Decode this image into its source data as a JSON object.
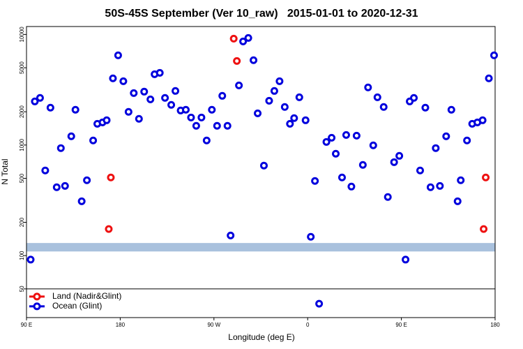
{
  "chart_data": {
    "type": "scatter",
    "title": "50S-45S September (Ver 10_raw)   2015-01-01 to 2020-12-31",
    "xlabel": "Longitude (deg E)",
    "ylabel": "N Total",
    "log_y": true,
    "xlim": [
      90,
      540
    ],
    "ylim": [
      27.5,
      11800
    ],
    "xticks": [
      {
        "value": 90,
        "label": "90 E"
      },
      180,
      {
        "value": 270,
        "label": "90 W"
      },
      {
        "value": 360,
        "label": "0"
      },
      {
        "value": 450,
        "label": "90 E"
      },
      {
        "value": 540,
        "label": "180"
      }
    ],
    "yticks": [
      50,
      100,
      200,
      500,
      1000,
      2000,
      5000,
      10000
    ],
    "band": [
      109,
      130
    ],
    "band_color": "#a9c1dd",
    "legend": "bottom-left",
    "series": [
      {
        "name": "Land (Nadir&Glint)",
        "color": "#ee1111",
        "x": [
          169,
          171,
          289,
          292,
          529,
          531
        ],
        "values": [
          174,
          509,
          9160,
          5760,
          174,
          509
        ]
      },
      {
        "name": "Ocean (Glint)",
        "color": "#0000dd",
        "x": [
          94,
          98,
          103,
          108,
          113,
          119,
          123,
          127,
          133,
          137,
          143,
          148,
          154,
          158,
          163,
          167,
          173,
          178,
          183,
          188,
          193,
          198,
          203,
          209,
          213,
          218,
          223,
          229,
          233,
          238,
          243,
          248,
          253,
          258,
          263,
          268,
          273,
          278,
          283,
          286,
          294,
          298,
          303,
          308,
          312,
          318,
          323,
          328,
          333,
          338,
          343,
          347,
          352,
          358,
          363,
          367,
          371,
          378,
          383,
          387,
          393,
          397,
          402,
          407,
          413,
          418,
          423,
          427,
          433,
          437,
          443,
          448,
          454,
          458,
          462,
          468,
          473,
          478,
          483,
          487,
          493,
          498,
          504,
          507,
          513,
          518,
          523,
          528,
          534,
          539
        ],
        "values": [
          92,
          2480,
          2670,
          589,
          2177,
          415,
          938,
          427,
          1200,
          2084,
          310,
          480,
          1099,
          1556,
          1603,
          1675,
          4008,
          6474,
          3777,
          1995,
          2951,
          1726,
          3040,
          2589,
          4365,
          4498,
          2670,
          2308,
          3084,
          2053,
          2084,
          1775,
          1493,
          1775,
          1099,
          2084,
          1493,
          2786,
          1493,
          152,
          3460,
          8650,
          9300,
          5850,
          1936,
          652,
          2515,
          3084,
          3777,
          2208,
          1556,
          1750,
          2704,
          1675,
          148,
          473,
          36.7,
          1067,
          1164,
          834,
          509,
          1233,
          421,
          1216,
          661,
          3319,
          993,
          2704,
          2208,
          339,
          700,
          798,
          92,
          2480,
          2670,
          589,
          2177,
          415,
          938,
          427,
          1200,
          2084,
          310,
          480,
          1099,
          1556,
          1603,
          1675,
          4008,
          6474
        ]
      }
    ]
  }
}
